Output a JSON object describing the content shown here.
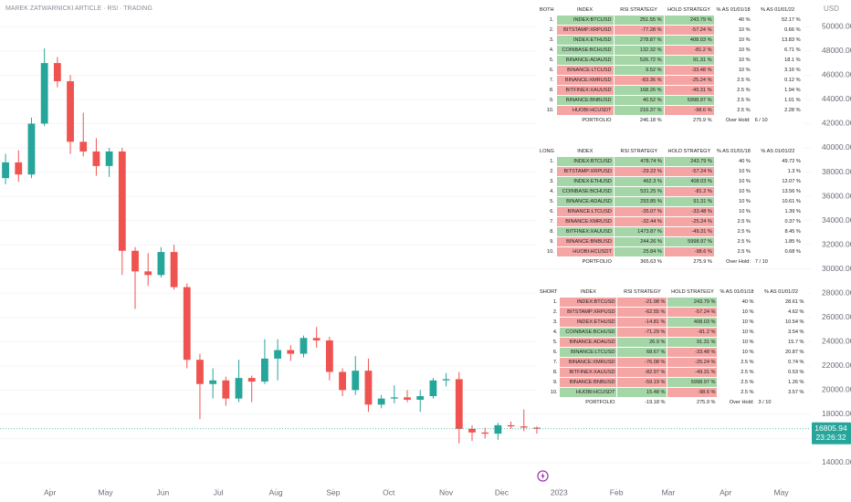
{
  "header": {
    "title": "MAREK ZATWARNICKI ARTICLE · RSI · TRADING",
    "currency": "USD"
  },
  "chart_data": {
    "type": "candlestick",
    "x": [
      -24,
      -17,
      -10,
      -3,
      4,
      11,
      18,
      25,
      32,
      39,
      46,
      53,
      60,
      67,
      74,
      81,
      88,
      95,
      102,
      109,
      116,
      123,
      130,
      137,
      144,
      151,
      158,
      165,
      172,
      179,
      186,
      193,
      200,
      207,
      214,
      221,
      228,
      235,
      242,
      249,
      256,
      263
    ],
    "open": [
      37500,
      38800,
      37800,
      42000,
      47000,
      45500,
      40500,
      39700,
      38500,
      39700,
      31500,
      29800,
      29500,
      31400,
      28500,
      22500,
      20500,
      20800,
      19300,
      21000,
      20700,
      22600,
      23300,
      23000,
      24300,
      24100,
      21500,
      20000,
      21600,
      18800,
      19300,
      19400,
      19200,
      19500,
      20800,
      20900,
      16800,
      16500,
      16400,
      17100,
      17000,
      16900
    ],
    "high": [
      39500,
      39800,
      42500,
      48200,
      47500,
      46000,
      42900,
      40800,
      40000,
      40000,
      31800,
      31300,
      31800,
      32000,
      28800,
      23000,
      21800,
      21100,
      22500,
      21200,
      24200,
      24200,
      23700,
      24500,
      25200,
      24400,
      21800,
      22800,
      22600,
      19600,
      20400,
      20000,
      20000,
      21000,
      21400,
      21500,
      17100,
      16900,
      17300,
      17400,
      18400,
      17000
    ],
    "low": [
      37000,
      37200,
      37500,
      41800,
      45000,
      39500,
      39300,
      37700,
      37600,
      29500,
      26700,
      28600,
      29300,
      28300,
      21800,
      17600,
      19300,
      18700,
      19000,
      19000,
      20500,
      20800,
      22400,
      22700,
      23500,
      20800,
      19500,
      19600,
      18200,
      18500,
      18900,
      19000,
      18200,
      19300,
      20300,
      15600,
      15800,
      16000,
      15900,
      16800,
      16600,
      16400
    ],
    "close": [
      38800,
      37800,
      42000,
      47000,
      45500,
      40500,
      39700,
      38500,
      39700,
      31500,
      29800,
      29500,
      31400,
      28500,
      22500,
      20500,
      20800,
      19300,
      21000,
      20700,
      22600,
      23300,
      23000,
      24300,
      24100,
      21500,
      20000,
      21600,
      18800,
      19300,
      19400,
      19200,
      19500,
      20800,
      20900,
      16800,
      16500,
      16400,
      17100,
      17000,
      16900,
      16805.94
    ],
    "up_color": "#26a69a",
    "down_color": "#ef5350",
    "xlim": [
      -27,
      411
    ],
    "xticks": [
      {
        "value": 0,
        "label": "Apr"
      },
      {
        "value": 30,
        "label": "May"
      },
      {
        "value": 61,
        "label": "Jun"
      },
      {
        "value": 91,
        "label": "Jul"
      },
      {
        "value": 122,
        "label": "Aug"
      },
      {
        "value": 153,
        "label": "Sep"
      },
      {
        "value": 183,
        "label": "Oct"
      },
      {
        "value": 214,
        "label": "Nov"
      },
      {
        "value": 244,
        "label": "Dec"
      },
      {
        "value": 275,
        "label": "2023"
      },
      {
        "value": 306,
        "label": "Feb"
      },
      {
        "value": 334,
        "label": "Mar"
      },
      {
        "value": 365,
        "label": "Apr"
      },
      {
        "value": 395,
        "label": "May"
      }
    ],
    "ylim": [
      11890,
      52206
    ],
    "yticks": [
      {
        "value": 14000,
        "label": "14000.00"
      },
      {
        "value": 16000,
        "label": "16000.00"
      },
      {
        "value": 18000,
        "label": "18000.00"
      },
      {
        "value": 20000,
        "label": "20000.00"
      },
      {
        "value": 22000,
        "label": "22000.00"
      },
      {
        "value": 24000,
        "label": "24000.00"
      },
      {
        "value": 26000,
        "label": "26000.00"
      },
      {
        "value": 28000,
        "label": "28000.00"
      },
      {
        "value": 30000,
        "label": "30000.00"
      },
      {
        "value": 32000,
        "label": "32000.00"
      },
      {
        "value": 34000,
        "label": "34000.00"
      },
      {
        "value": 36000,
        "label": "36000.00"
      },
      {
        "value": 38000,
        "label": "38000.00"
      },
      {
        "value": 40000,
        "label": "40000.00"
      },
      {
        "value": 42000,
        "label": "42000.00"
      },
      {
        "value": 44000,
        "label": "44000.00"
      },
      {
        "value": 46000,
        "label": "46000.00"
      },
      {
        "value": 48000,
        "label": "48000.00"
      },
      {
        "value": 50000,
        "label": "50000.00"
      }
    ],
    "grid": true,
    "countdown": "23:26:32"
  },
  "colors": {
    "green": "#a5d6a7",
    "red": "#f6a5a5"
  },
  "tables": [
    {
      "columns": [
        "BOTH",
        "INDEX",
        "RSI STRATEGY",
        "HOLD STRATEGY",
        "% AS 01/01/18",
        "% AS 01/01/22"
      ],
      "rows": [
        {
          "n": "1.",
          "index": "INDEX:BTCUSD",
          "rsi": "251.55 %",
          "hold": "243.79 %",
          "w18": "40 %",
          "w22": "52.17 %",
          "shade": [
            "green",
            "green",
            "green"
          ]
        },
        {
          "n": "2.",
          "index": "BITSTAMP:XRPUSD",
          "rsi": "-77.28 %",
          "hold": "-57.24 %",
          "w18": "10 %",
          "w22": "0.66 %",
          "shade": [
            "red",
            "red",
            "red"
          ]
        },
        {
          "n": "3.",
          "index": "INDEX:ETHUSD",
          "rsi": "278.87 %",
          "hold": "408.03 %",
          "w18": "10 %",
          "w22": "13.83 %",
          "shade": [
            "green",
            "green",
            "green"
          ]
        },
        {
          "n": "4.",
          "index": "COINBASE:BCHUSD",
          "rsi": "132.32 %",
          "hold": "-81.2 %",
          "w18": "10 %",
          "w22": "6.71 %",
          "shade": [
            "green",
            "green",
            "red"
          ]
        },
        {
          "n": "5.",
          "index": "BINANCE:ADAUSD",
          "rsi": "526.72 %",
          "hold": "91.31 %",
          "w18": "10 %",
          "w22": "18.1 %",
          "shade": [
            "green",
            "green",
            "green"
          ]
        },
        {
          "n": "6.",
          "index": "BINANCE:LTCUSD",
          "rsi": "9.52 %",
          "hold": "-33.48 %",
          "w18": "10 %",
          "w22": "3.16 %",
          "shade": [
            "red",
            "green",
            "red"
          ]
        },
        {
          "n": "7.",
          "index": "BINANCE:XMRUSD",
          "rsi": "-83.36 %",
          "hold": "-25.24 %",
          "w18": "2.5 %",
          "w22": "0.12 %",
          "shade": [
            "red",
            "red",
            "red"
          ]
        },
        {
          "n": "8.",
          "index": "BITFINEX:XAUUSD",
          "rsi": "168.26 %",
          "hold": "-49.31 %",
          "w18": "2.5 %",
          "w22": "1.94 %",
          "shade": [
            "red",
            "green",
            "red"
          ]
        },
        {
          "n": "9.",
          "index": "BINANCE:BNBUSD",
          "rsi": "40.52 %",
          "hold": "5998.97 %",
          "w18": "2.5 %",
          "w22": "1.01 %",
          "shade": [
            "green",
            "green",
            "green"
          ]
        },
        {
          "n": "10.",
          "index": "HUOBI:HCUSDT",
          "rsi": "216.37 %",
          "hold": "-98.6 %",
          "w18": "2.5 %",
          "w22": "2.28 %",
          "shade": [
            "red",
            "green",
            "red"
          ]
        }
      ],
      "portfolio": {
        "label": "PORTFOLIO",
        "rsi": "246.18 %",
        "hold": "275.9 %",
        "over_hold_label": "Over Hold:",
        "over_hold": "6 / 10"
      }
    },
    {
      "columns": [
        "LONG",
        "INDEX",
        "RSI STRATEGY",
        "HOLD STRATEGY",
        "% AS 01/01/18",
        "% AS 01/01/22"
      ],
      "rows": [
        {
          "n": "1.",
          "index": "INDEX:BTCUSD",
          "rsi": "478.74 %",
          "hold": "243.79 %",
          "w18": "40 %",
          "w22": "49.72 %",
          "shade": [
            "green",
            "green",
            "green"
          ]
        },
        {
          "n": "2.",
          "index": "BITSTAMP:XRPUSD",
          "rsi": "-29.22 %",
          "hold": "-57.24 %",
          "w18": "10 %",
          "w22": "1.3 %",
          "shade": [
            "red",
            "red",
            "red"
          ]
        },
        {
          "n": "3.",
          "index": "INDEX:ETHUSD",
          "rsi": "462.3 %",
          "hold": "408.03 %",
          "w18": "10 %",
          "w22": "12.07 %",
          "shade": [
            "green",
            "green",
            "green"
          ]
        },
        {
          "n": "4.",
          "index": "COINBASE:BCHUSD",
          "rsi": "531.25 %",
          "hold": "-81.2 %",
          "w18": "10 %",
          "w22": "13.56 %",
          "shade": [
            "green",
            "green",
            "red"
          ]
        },
        {
          "n": "5.",
          "index": "BINANCE:ADAUSD",
          "rsi": "293.85 %",
          "hold": "91.31 %",
          "w18": "10 %",
          "w22": "10.61 %",
          "shade": [
            "green",
            "green",
            "green"
          ]
        },
        {
          "n": "6.",
          "index": "BINANCE:LTCUSD",
          "rsi": "-35.07 %",
          "hold": "-33.48 %",
          "w18": "10 %",
          "w22": "1.39 %",
          "shade": [
            "red",
            "red",
            "red"
          ]
        },
        {
          "n": "7.",
          "index": "BINANCE:XMRUSD",
          "rsi": "-32.44 %",
          "hold": "-25.24 %",
          "w18": "2.5 %",
          "w22": "0.37 %",
          "shade": [
            "red",
            "red",
            "red"
          ]
        },
        {
          "n": "8.",
          "index": "BITFINEX:XAUUSD",
          "rsi": "1473.87 %",
          "hold": "-49.31 %",
          "w18": "2.5 %",
          "w22": "8.45 %",
          "shade": [
            "green",
            "green",
            "red"
          ]
        },
        {
          "n": "9.",
          "index": "BINANCE:BNBUSD",
          "rsi": "244.26 %",
          "hold": "5998.97 %",
          "w18": "2.5 %",
          "w22": "1.85 %",
          "shade": [
            "red",
            "green",
            "green"
          ]
        },
        {
          "n": "10.",
          "index": "HUOBI:HCUSDT",
          "rsi": "25.84 %",
          "hold": "-98.6 %",
          "w18": "2.5 %",
          "w22": "0.68 %",
          "shade": [
            "red",
            "green",
            "red"
          ]
        }
      ],
      "portfolio": {
        "label": "PORTFOLIO",
        "rsi": "365.63 %",
        "hold": "275.9 %",
        "over_hold_label": "Over Hold:",
        "over_hold": "7 / 10"
      }
    },
    {
      "columns": [
        "SHORT",
        "INDEX",
        "RSI STRATEGY",
        "HOLD STRATEGY",
        "% AS 01/01/18",
        "% AS 01/01/22"
      ],
      "rows": [
        {
          "n": "1.",
          "index": "INDEX:BTCUSD",
          "rsi": "-21.98 %",
          "hold": "243.79 %",
          "w18": "40 %",
          "w22": "28.61 %",
          "shade": [
            "red",
            "red",
            "green"
          ]
        },
        {
          "n": "2.",
          "index": "BITSTAMP:XRPUSD",
          "rsi": "-62.55 %",
          "hold": "-57.24 %",
          "w18": "10 %",
          "w22": "4.62 %",
          "shade": [
            "red",
            "red",
            "red"
          ]
        },
        {
          "n": "3.",
          "index": "INDEX:ETHUSD",
          "rsi": "-14.81 %",
          "hold": "408.03 %",
          "w18": "10 %",
          "w22": "10.54 %",
          "shade": [
            "red",
            "red",
            "green"
          ]
        },
        {
          "n": "4.",
          "index": "COINBASE:BCHUSD",
          "rsi": "-71.29 %",
          "hold": "-81.2 %",
          "w18": "10 %",
          "w22": "3.54 %",
          "shade": [
            "green",
            "red",
            "red"
          ]
        },
        {
          "n": "5.",
          "index": "BINANCE:ADAUSD",
          "rsi": "26.9 %",
          "hold": "91.31 %",
          "w18": "10 %",
          "w22": "15.7 %",
          "shade": [
            "red",
            "green",
            "green"
          ]
        },
        {
          "n": "6.",
          "index": "BINANCE:LTCUSD",
          "rsi": "68.67 %",
          "hold": "-33.48 %",
          "w18": "10 %",
          "w22": "20.87 %",
          "shade": [
            "green",
            "green",
            "red"
          ]
        },
        {
          "n": "7.",
          "index": "BINANCE:XMRUSD",
          "rsi": "-76.08 %",
          "hold": "-25.24 %",
          "w18": "2.5 %",
          "w22": "0.74 %",
          "shade": [
            "red",
            "red",
            "red"
          ]
        },
        {
          "n": "8.",
          "index": "BITFINEX:XAUUSD",
          "rsi": "-82.97 %",
          "hold": "-49.31 %",
          "w18": "2.5 %",
          "w22": "0.53 %",
          "shade": [
            "red",
            "red",
            "red"
          ]
        },
        {
          "n": "9.",
          "index": "BINANCE:BNBUSD",
          "rsi": "-59.19 %",
          "hold": "5998.97 %",
          "w18": "2.5 %",
          "w22": "1.26 %",
          "shade": [
            "red",
            "red",
            "green"
          ]
        },
        {
          "n": "10.",
          "index": "HUOBI:HCUSDT",
          "rsi": "15.48 %",
          "hold": "-98.6 %",
          "w18": "2.5 %",
          "w22": "3.57 %",
          "shade": [
            "green",
            "green",
            "red"
          ]
        }
      ],
      "portfolio": {
        "label": "PORTFOLIO",
        "rsi": "-19.18 %",
        "hold": "275.9 %",
        "over_hold_label": "Over Hold:",
        "over_hold": "3 / 10"
      }
    }
  ]
}
